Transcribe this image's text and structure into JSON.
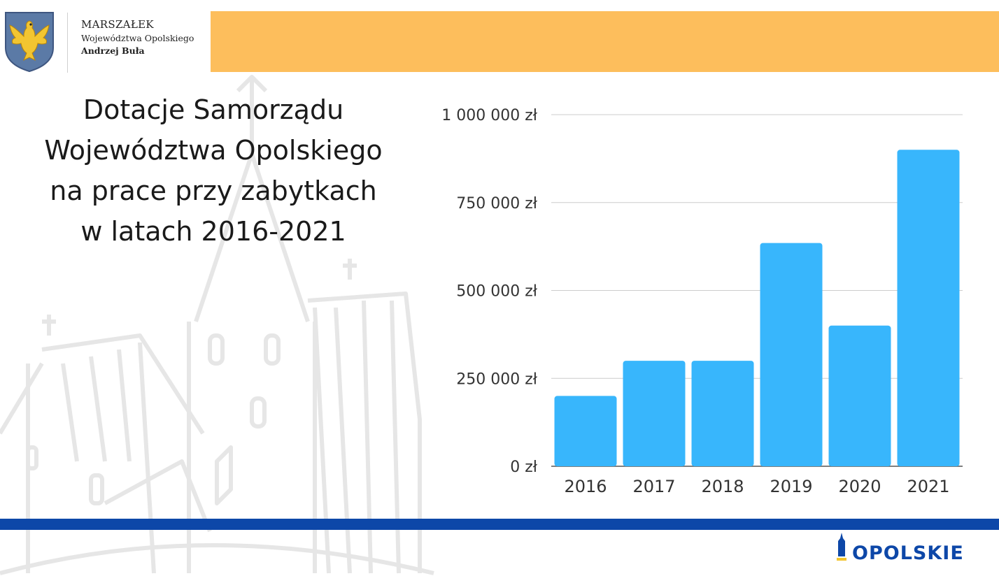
{
  "header": {
    "line1": "MARSZAŁEK",
    "line2": "Województwa Opolskiego",
    "line3": "Andrzej Buła"
  },
  "title_lines": [
    "Dotacje Samorządu",
    "Województwa Opolskiego",
    "na prace przy zabytkach",
    "w latach 2016-2021"
  ],
  "chart_data": {
    "type": "bar",
    "categories": [
      "2016",
      "2017",
      "2018",
      "2019",
      "2020",
      "2021"
    ],
    "values": [
      200000,
      300000,
      300000,
      635000,
      400000,
      900000
    ],
    "ylim": [
      0,
      1000000
    ],
    "yticks": [
      0,
      250000,
      500000,
      750000,
      1000000
    ],
    "ytick_labels": [
      "0 zł",
      "250 000 zł",
      "500 000 zł",
      "750 000 zł",
      "1 000 000 zł"
    ],
    "xlabel": "",
    "ylabel": "",
    "grid": true,
    "bar_color": "#38b6fc"
  },
  "footer": {
    "logo_text": "OPOLSKIE"
  },
  "colors": {
    "header_band": "#fdbe5c",
    "footer_band": "#0d47a8",
    "bar": "#38b6fc"
  },
  "icons": {
    "coat_of_arms": "eagle-shield-icon",
    "logo": "tower-icon"
  }
}
